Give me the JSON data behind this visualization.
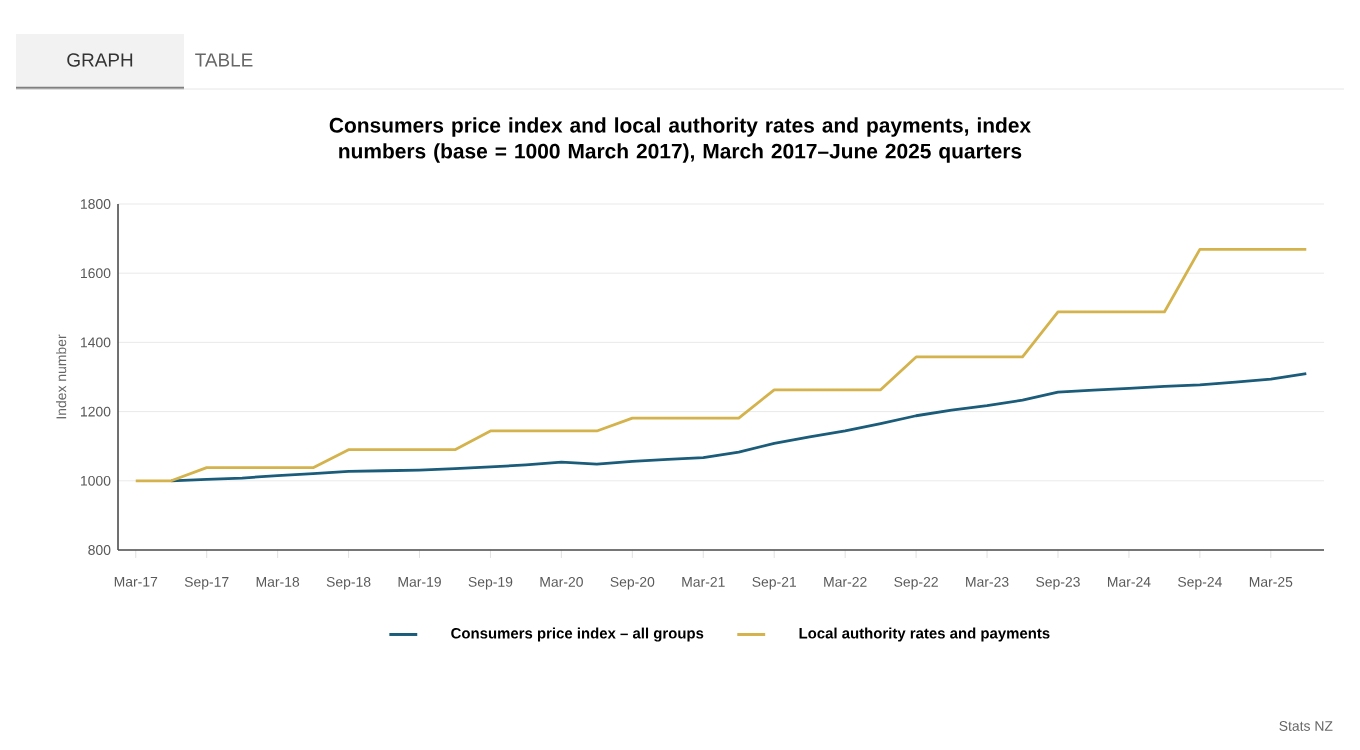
{
  "chart_data": {
    "type": "line",
    "title": "Consumers price index and local authority rates and payments, index numbers (base = 1000 March 2017), March 2017–June 2025 quarters",
    "ylabel": "Index number",
    "categories": [
      "Mar-17",
      null,
      "Sep-17",
      null,
      "Mar-18",
      null,
      "Sep-18",
      null,
      "Mar-19",
      null,
      "Sep-19",
      null,
      "Mar-20",
      null,
      "Sep-20",
      null,
      "Mar-21",
      null,
      "Sep-21",
      null,
      "Mar-22",
      null,
      "Sep-22",
      null,
      "Mar-23",
      null,
      "Sep-23",
      null,
      "Mar-24",
      null,
      "Sep-24",
      null,
      "Mar-25",
      null
    ],
    "series": [
      {
        "name": "Consumers price index – all groups",
        "color": "#1a5c7a",
        "values": [
          null,
          1000,
          1004,
          1008,
          1015,
          1021,
          1027,
          1029,
          1031,
          1035,
          1040,
          1046,
          1054,
          1048,
          1056,
          1062,
          1067,
          1083,
          1108,
          1127,
          1144,
          1165,
          1188,
          1204,
          1217,
          1233,
          1256,
          1262,
          1267,
          1273,
          1277,
          1285,
          1294,
          1310
        ]
      },
      {
        "name": "Local authority rates and payments",
        "color": "#d4b24c",
        "values": [
          1000,
          1000,
          1038,
          1038,
          1038,
          1038,
          1090,
          1090,
          1090,
          1090,
          1144,
          1144,
          1144,
          1144,
          1181,
          1181,
          1181,
          1181,
          1263,
          1263,
          1263,
          1263,
          1358,
          1358,
          1358,
          1358,
          1488,
          1488,
          1488,
          1488,
          1669,
          1669,
          1669,
          1669
        ]
      }
    ],
    "ylim": [
      800,
      1800
    ],
    "yticks": [
      800,
      1000,
      1200,
      1400,
      1600,
      1800
    ],
    "grid": "y",
    "legend": "bottom",
    "marker": "none",
    "line_style": "solid",
    "annotations": [
      "GRAPH",
      "TABLE",
      "Stats NZ"
    ]
  }
}
